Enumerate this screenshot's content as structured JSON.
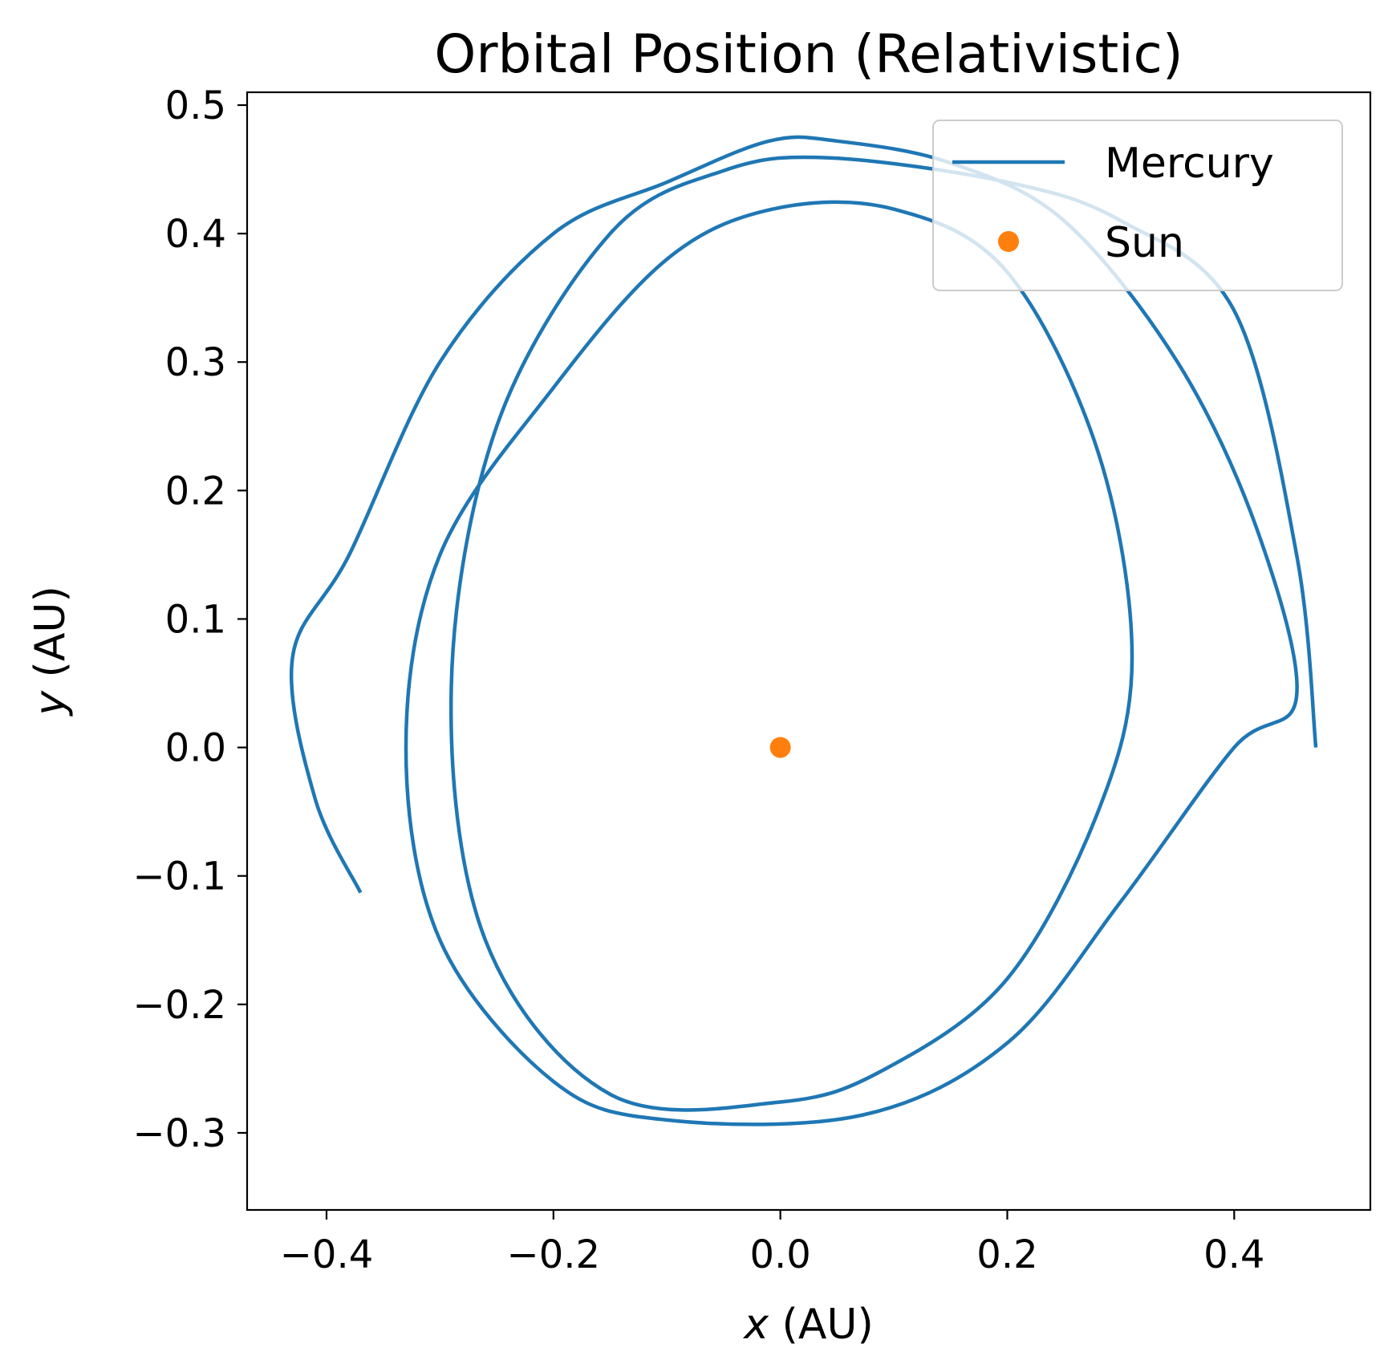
{
  "chart_data": {
    "type": "line",
    "title": "Orbital Position (Relativistic)",
    "xlabel_var": "x",
    "xlabel_unit": " (AU)",
    "ylabel_var": "y",
    "ylabel_unit": " (AU)",
    "xlim": [
      -0.47,
      0.52
    ],
    "ylim": [
      -0.36,
      0.51
    ],
    "x_ticks": [
      -0.4,
      -0.2,
      0.0,
      0.2,
      0.4
    ],
    "x_tick_labels": [
      "−0.4",
      "−0.2",
      "0.0",
      "0.2",
      "0.4"
    ],
    "y_ticks": [
      -0.3,
      -0.2,
      -0.1,
      0.0,
      0.1,
      0.2,
      0.3,
      0.4,
      0.5
    ],
    "y_tick_labels": [
      "−0.3",
      "−0.2",
      "−0.1",
      "0.0",
      "0.1",
      "0.2",
      "0.3",
      "0.4",
      "0.5"
    ],
    "grid": false,
    "legend_position": "upper right",
    "series": [
      {
        "name": "Mercury",
        "kind": "line",
        "color": "#1f77b4",
        "x": [
          0.472,
          0.455,
          0.4,
          0.3,
          0.2,
          0.043,
          -0.05,
          -0.15,
          -0.25,
          -0.29,
          -0.26,
          -0.15,
          0.0,
          0.093,
          0.2,
          0.28,
          0.31,
          0.28,
          0.2,
          0.1,
          -0.007,
          -0.1,
          -0.2,
          -0.3,
          -0.33,
          -0.3,
          -0.2,
          -0.1,
          0.073,
          0.2,
          0.3,
          0.4,
          0.455,
          0.42,
          0.35,
          0.25,
          0.15,
          0.05,
          -0.01,
          -0.1,
          -0.2,
          -0.3,
          -0.38,
          -0.43,
          -0.41,
          -0.37
        ],
        "y": [
          0.0,
          0.15,
          0.34,
          0.41,
          0.44,
          0.459,
          0.449,
          0.4,
          0.25,
          0.047,
          -0.15,
          -0.27,
          -0.276,
          -0.25,
          -0.18,
          -0.05,
          0.07,
          0.23,
          0.37,
          0.419,
          0.419,
          0.38,
          0.28,
          0.15,
          -0.0,
          -0.15,
          -0.26,
          -0.29,
          -0.286,
          -0.23,
          -0.12,
          0.0,
          0.04,
          0.17,
          0.3,
          0.41,
          0.455,
          0.472,
          0.472,
          0.44,
          0.4,
          0.3,
          0.15,
          0.07,
          -0.04,
          -0.113
        ]
      },
      {
        "name": "Sun",
        "kind": "point",
        "color": "#ff7f0e",
        "x": [
          0.0
        ],
        "y": [
          0.0
        ]
      }
    ]
  }
}
